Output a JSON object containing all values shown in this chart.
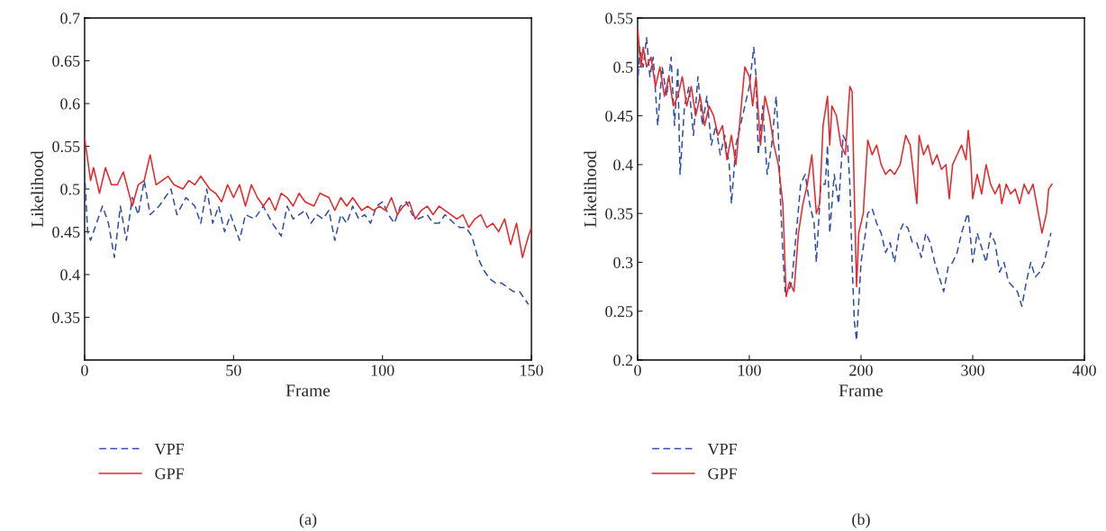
{
  "chart_data": [
    {
      "type": "line",
      "xlabel": "Frame",
      "ylabel": "Likelihood",
      "xlim": [
        0,
        150
      ],
      "xticks": [
        0,
        50,
        100,
        150
      ],
      "ylim": [
        0.3,
        0.7
      ],
      "yticks": [
        0.35,
        0.4,
        0.45,
        0.5,
        0.55,
        0.6,
        0.65,
        0.7
      ],
      "grid": false,
      "legend": "bottom",
      "annotations": [
        "(a)"
      ],
      "series": [
        {
          "name": "VPF",
          "color": "#2e4fa3",
          "line_style": "dashed",
          "x": [
            0,
            1,
            2,
            4,
            6,
            8,
            10,
            12,
            14,
            16,
            18,
            20,
            22,
            25,
            27,
            29,
            31,
            34,
            37,
            39,
            41,
            43,
            45,
            47,
            49,
            52,
            54,
            57,
            60,
            63,
            66,
            68,
            70,
            72,
            74,
            76,
            78,
            80,
            82,
            84,
            86,
            88,
            90,
            92,
            94,
            96,
            98,
            100,
            102,
            104,
            106,
            108,
            110,
            112,
            115,
            117,
            119,
            121,
            124,
            126,
            128,
            130,
            132,
            134,
            136,
            138,
            140,
            142,
            144,
            146,
            148,
            149
          ],
          "values": [
            0.52,
            0.45,
            0.44,
            0.46,
            0.48,
            0.46,
            0.42,
            0.48,
            0.44,
            0.49,
            0.47,
            0.51,
            0.47,
            0.48,
            0.49,
            0.5,
            0.47,
            0.49,
            0.48,
            0.46,
            0.5,
            0.46,
            0.48,
            0.45,
            0.47,
            0.44,
            0.47,
            0.465,
            0.48,
            0.46,
            0.445,
            0.48,
            0.465,
            0.47,
            0.475,
            0.46,
            0.47,
            0.465,
            0.475,
            0.44,
            0.47,
            0.46,
            0.48,
            0.465,
            0.47,
            0.46,
            0.48,
            0.485,
            0.47,
            0.46,
            0.48,
            0.485,
            0.47,
            0.465,
            0.47,
            0.46,
            0.46,
            0.47,
            0.46,
            0.455,
            0.455,
            0.445,
            0.42,
            0.405,
            0.395,
            0.39,
            0.39,
            0.385,
            0.38,
            0.38,
            0.37,
            0.365
          ]
        },
        {
          "name": "GPF",
          "color": "#e8262a",
          "line_style": "solid",
          "x": [
            0,
            2,
            3,
            5,
            7,
            9,
            11,
            13,
            16,
            18,
            20,
            22,
            24,
            26,
            28,
            30,
            33,
            35,
            37,
            39,
            42,
            44,
            46,
            48,
            50,
            52,
            54,
            56,
            58,
            60,
            62,
            64,
            66,
            68,
            70,
            72,
            74,
            77,
            79,
            82,
            84,
            86,
            88,
            90,
            93,
            95,
            97,
            99,
            101,
            103,
            105,
            107,
            109,
            111,
            113,
            115,
            117,
            119,
            121,
            123,
            125,
            127,
            129,
            131,
            133,
            135,
            137,
            139,
            141,
            143,
            145,
            147,
            149,
            150
          ],
          "values": [
            0.56,
            0.51,
            0.525,
            0.495,
            0.525,
            0.505,
            0.505,
            0.52,
            0.48,
            0.505,
            0.51,
            0.54,
            0.505,
            0.51,
            0.515,
            0.505,
            0.5,
            0.51,
            0.505,
            0.515,
            0.5,
            0.495,
            0.485,
            0.505,
            0.49,
            0.505,
            0.48,
            0.505,
            0.49,
            0.48,
            0.49,
            0.475,
            0.495,
            0.49,
            0.48,
            0.495,
            0.485,
            0.48,
            0.495,
            0.49,
            0.475,
            0.49,
            0.48,
            0.49,
            0.475,
            0.48,
            0.475,
            0.48,
            0.475,
            0.49,
            0.47,
            0.48,
            0.485,
            0.465,
            0.475,
            0.48,
            0.47,
            0.48,
            0.475,
            0.47,
            0.465,
            0.47,
            0.455,
            0.465,
            0.47,
            0.455,
            0.46,
            0.45,
            0.465,
            0.435,
            0.46,
            0.42,
            0.445,
            0.455
          ]
        }
      ]
    },
    {
      "type": "line",
      "xlabel": "Frame",
      "ylabel": "Likelihood",
      "xlim": [
        0,
        400
      ],
      "xticks": [
        0,
        100,
        200,
        300,
        400
      ],
      "ylim": [
        0.2,
        0.55
      ],
      "yticks": [
        0.2,
        0.25,
        0.3,
        0.35,
        0.4,
        0.45,
        0.5,
        0.55
      ],
      "grid": false,
      "legend": "bottom",
      "annotations": [
        "(b)"
      ],
      "series": [
        {
          "name": "VPF",
          "color": "#2e4fa3",
          "line_style": "dashed",
          "x": [
            0,
            2,
            5,
            8,
            11,
            14,
            18,
            22,
            26,
            30,
            33,
            36,
            38,
            42,
            46,
            50,
            54,
            58,
            62,
            66,
            70,
            74,
            78,
            82,
            84,
            88,
            92,
            96,
            100,
            104,
            106,
            108,
            112,
            116,
            120,
            124,
            126,
            128,
            130,
            132,
            135,
            138,
            142,
            146,
            150,
            154,
            158,
            160,
            164,
            168,
            170,
            172,
            176,
            180,
            184,
            188,
            190,
            192,
            194,
            196,
            200,
            204,
            206,
            210,
            214,
            218,
            222,
            226,
            230,
            234,
            238,
            242,
            246,
            250,
            254,
            258,
            262,
            266,
            270,
            274,
            278,
            282,
            286,
            290,
            294,
            296,
            300,
            304,
            308,
            312,
            316,
            320,
            324,
            328,
            332,
            336,
            340,
            344,
            348,
            352,
            356,
            360,
            364,
            368,
            370
          ],
          "values": [
            0.48,
            0.52,
            0.5,
            0.53,
            0.49,
            0.51,
            0.44,
            0.5,
            0.47,
            0.51,
            0.44,
            0.5,
            0.39,
            0.46,
            0.48,
            0.43,
            0.49,
            0.44,
            0.47,
            0.42,
            0.44,
            0.41,
            0.43,
            0.4,
            0.36,
            0.42,
            0.44,
            0.46,
            0.48,
            0.52,
            0.49,
            0.41,
            0.46,
            0.39,
            0.42,
            0.47,
            0.43,
            0.36,
            0.31,
            0.27,
            0.27,
            0.28,
            0.33,
            0.38,
            0.39,
            0.36,
            0.34,
            0.3,
            0.38,
            0.38,
            0.42,
            0.33,
            0.39,
            0.36,
            0.43,
            0.42,
            0.38,
            0.3,
            0.24,
            0.22,
            0.3,
            0.33,
            0.35,
            0.355,
            0.34,
            0.33,
            0.31,
            0.32,
            0.3,
            0.33,
            0.34,
            0.335,
            0.32,
            0.32,
            0.305,
            0.33,
            0.32,
            0.3,
            0.285,
            0.27,
            0.295,
            0.3,
            0.31,
            0.33,
            0.345,
            0.35,
            0.3,
            0.33,
            0.315,
            0.3,
            0.33,
            0.32,
            0.29,
            0.3,
            0.28,
            0.275,
            0.27,
            0.255,
            0.28,
            0.3,
            0.285,
            0.29,
            0.3,
            0.32,
            0.33
          ]
        },
        {
          "name": "GPF",
          "color": "#e8262a",
          "line_style": "solid",
          "x": [
            0,
            3,
            5,
            8,
            12,
            16,
            20,
            24,
            28,
            32,
            36,
            40,
            44,
            48,
            52,
            56,
            60,
            64,
            68,
            72,
            76,
            80,
            84,
            88,
            92,
            96,
            100,
            103,
            106,
            110,
            114,
            118,
            122,
            126,
            130,
            133,
            136,
            140,
            144,
            148,
            152,
            156,
            158,
            160,
            163,
            166,
            170,
            172,
            174,
            178,
            182,
            186,
            190,
            192,
            194,
            196,
            198,
            202,
            206,
            210,
            214,
            218,
            222,
            226,
            230,
            235,
            240,
            244,
            248,
            250,
            252,
            256,
            260,
            264,
            268,
            272,
            276,
            279,
            282,
            286,
            290,
            294,
            296,
            298,
            300,
            304,
            308,
            312,
            316,
            320,
            324,
            326,
            330,
            334,
            338,
            342,
            346,
            350,
            354,
            358,
            362,
            366,
            368,
            371
          ],
          "values": [
            0.54,
            0.5,
            0.52,
            0.5,
            0.51,
            0.48,
            0.5,
            0.47,
            0.49,
            0.46,
            0.47,
            0.49,
            0.46,
            0.48,
            0.45,
            0.47,
            0.44,
            0.46,
            0.45,
            0.43,
            0.44,
            0.405,
            0.43,
            0.4,
            0.45,
            0.5,
            0.49,
            0.46,
            0.49,
            0.42,
            0.47,
            0.45,
            0.42,
            0.4,
            0.36,
            0.265,
            0.28,
            0.27,
            0.33,
            0.36,
            0.38,
            0.41,
            0.38,
            0.35,
            0.36,
            0.44,
            0.47,
            0.42,
            0.46,
            0.45,
            0.42,
            0.41,
            0.48,
            0.475,
            0.37,
            0.275,
            0.33,
            0.35,
            0.425,
            0.41,
            0.42,
            0.4,
            0.39,
            0.395,
            0.39,
            0.4,
            0.43,
            0.42,
            0.38,
            0.36,
            0.43,
            0.41,
            0.42,
            0.4,
            0.41,
            0.395,
            0.4,
            0.365,
            0.4,
            0.41,
            0.42,
            0.405,
            0.435,
            0.41,
            0.365,
            0.39,
            0.37,
            0.4,
            0.38,
            0.37,
            0.38,
            0.36,
            0.38,
            0.37,
            0.375,
            0.36,
            0.38,
            0.37,
            0.38,
            0.355,
            0.33,
            0.35,
            0.375,
            0.38
          ]
        }
      ]
    }
  ]
}
